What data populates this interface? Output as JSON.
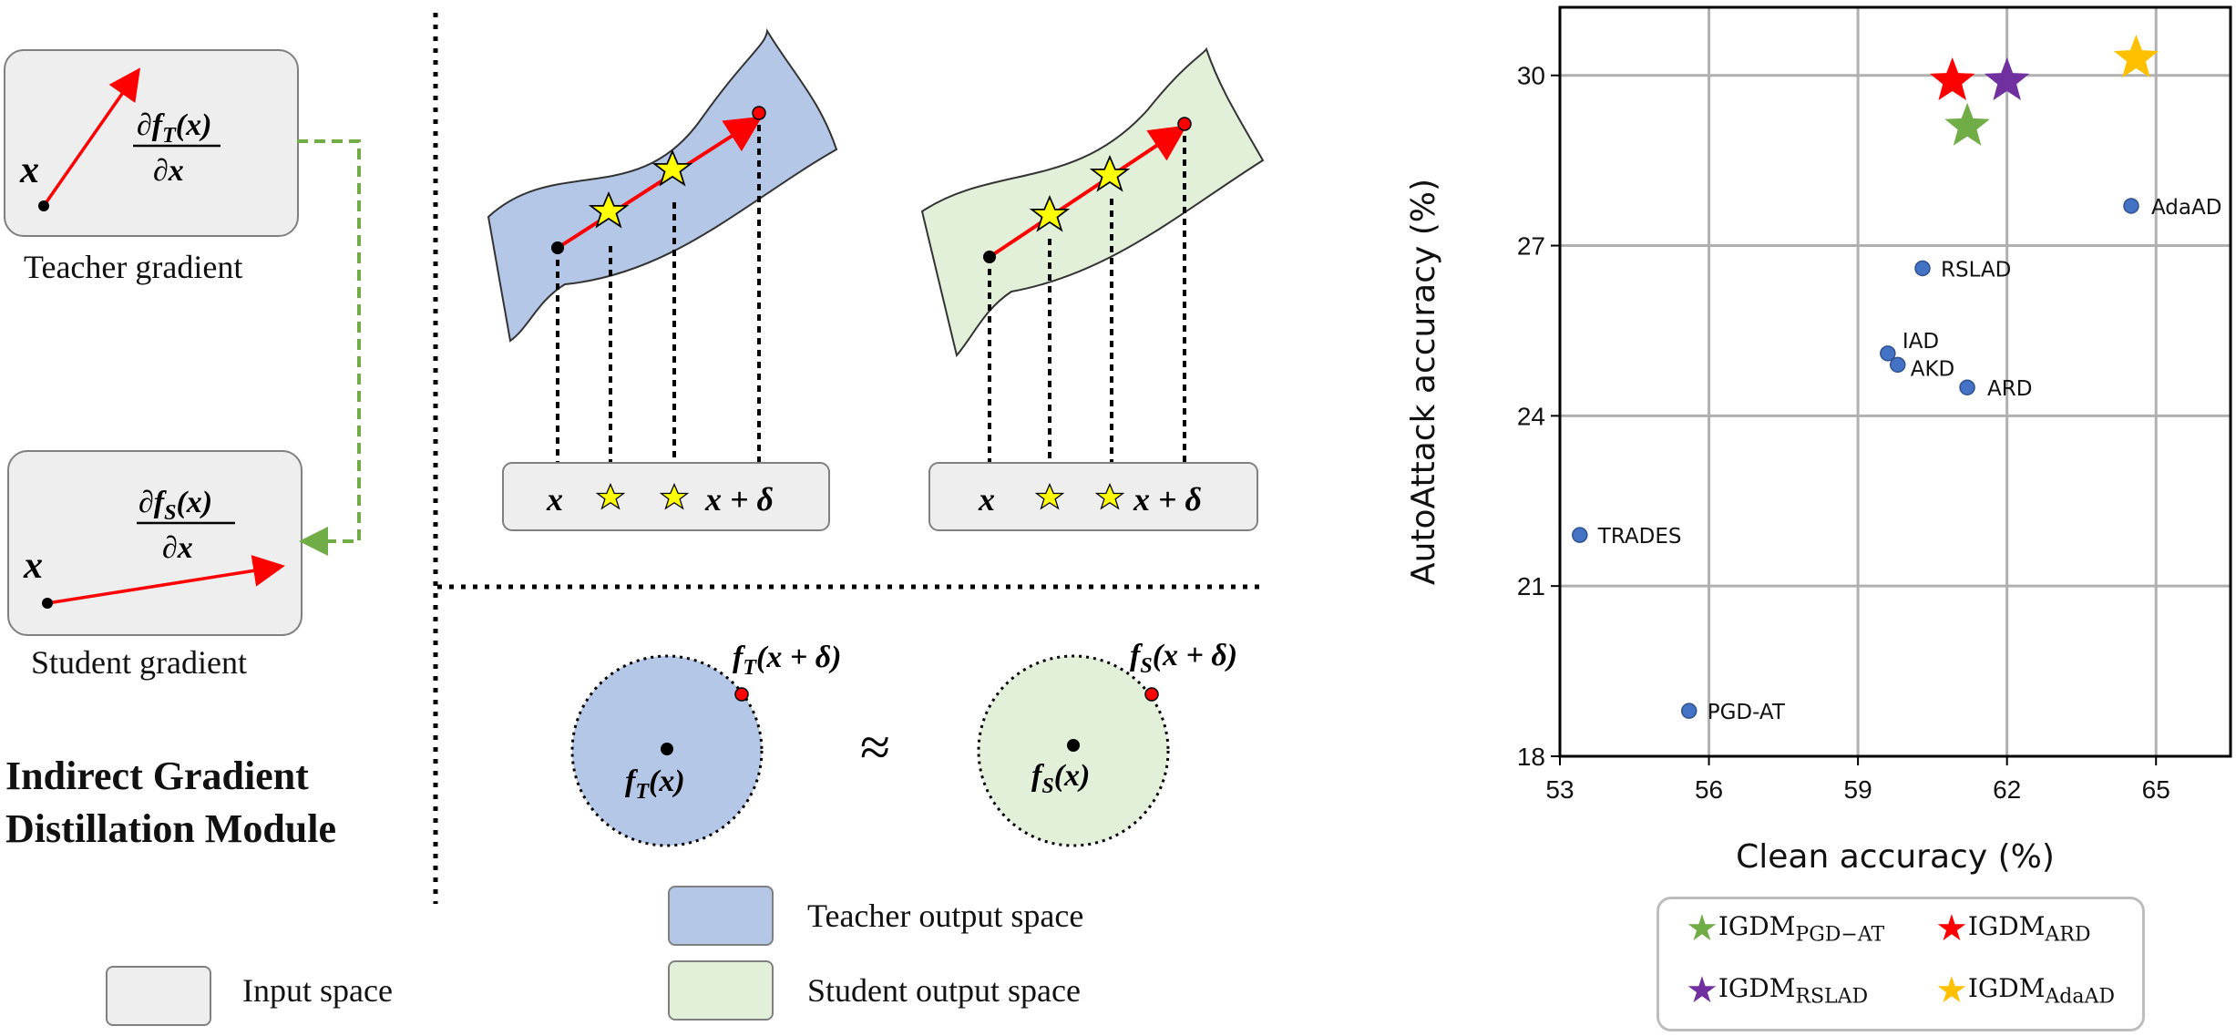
{
  "left": {
    "teacher_caption": "Teacher gradient",
    "student_caption": "Student gradient",
    "teacher_formula": "∂fT(x)/∂x",
    "student_formula": "∂fS(x)/∂x",
    "x_symbol": "x",
    "module_title_line1": "Indirect Gradient",
    "module_title_line2": "Distillation Module"
  },
  "middle": {
    "box_x": "x",
    "box_x_plus_delta": "x + δ",
    "teacher_point_label": "fT(x + δ)",
    "student_point_label": "fS(x + δ)",
    "teacher_center_label": "fT(x)",
    "student_center_label": "fS(x)",
    "approx_symbol": "≈"
  },
  "legend_bottom": {
    "input_space": "Input space",
    "teacher_output_space": "Teacher output space",
    "student_output_space": "Student output space"
  },
  "colors": {
    "teacher_blue": "#b4c7e7",
    "student_green": "#e2f0d9",
    "input_gray": "#eeeeee",
    "arrow_red": "#ff0000",
    "dashed_green": "#70ad47",
    "star_yellow": "#ffff00",
    "point_blue": "#4472c4"
  },
  "chart_data": {
    "type": "scatter",
    "xlabel": "Clean accuracy (%)",
    "ylabel": "AutoAttack accuracy (%)",
    "xlim": [
      53,
      66.5
    ],
    "ylim": [
      18,
      31.2
    ],
    "xticks": [
      "53",
      "56",
      "59",
      "62",
      "65"
    ],
    "yticks": [
      "18",
      "21",
      "24",
      "27",
      "30"
    ],
    "grid": true,
    "points": [
      {
        "label": "TRADES",
        "x": 53.4,
        "y": 21.9
      },
      {
        "label": "PGD-AT",
        "x": 55.6,
        "y": 18.8
      },
      {
        "label": "IAD",
        "x": 59.6,
        "y": 25.1
      },
      {
        "label": "AKD",
        "x": 59.8,
        "y": 24.9
      },
      {
        "label": "ARD",
        "x": 61.2,
        "y": 24.5
      },
      {
        "label": "RSLAD",
        "x": 60.3,
        "y": 26.6
      },
      {
        "label": "AdaAD",
        "x": 64.5,
        "y": 27.7
      }
    ],
    "stars": [
      {
        "name": "IGDM_PGD-AT",
        "x": 61.2,
        "y": 29.1,
        "color": "#70ad47"
      },
      {
        "name": "IGDM_ARD",
        "x": 60.9,
        "y": 29.9,
        "color": "#ff0000"
      },
      {
        "name": "IGDM_RSLAD",
        "x": 62.0,
        "y": 29.9,
        "color": "#7030a0"
      },
      {
        "name": "IGDM_AdaAD",
        "x": 64.6,
        "y": 30.3,
        "color": "#ffc000"
      }
    ],
    "legend": [
      {
        "base": "IGDM",
        "sub": "PGD−AT",
        "color": "#70ad47"
      },
      {
        "base": "IGDM",
        "sub": "ARD",
        "color": "#ff0000"
      },
      {
        "base": "IGDM",
        "sub": "RSLAD",
        "color": "#7030a0"
      },
      {
        "base": "IGDM",
        "sub": "AdaAD",
        "color": "#ffc000"
      }
    ],
    "legend_position": "below"
  }
}
